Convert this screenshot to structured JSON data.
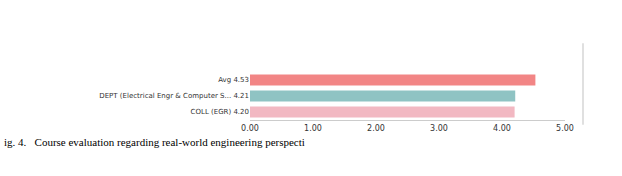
{
  "chart_data": {
    "type": "bar",
    "orientation": "horizontal",
    "caption": "ig. 4.   Course evaluation regarding real-world engineering perspecti",
    "categories": [
      "Avg 4.53",
      "DEPT (Electrical Engr & Computer S... 4.21",
      "COLL (EGR) 4.20"
    ],
    "values": [
      4.53,
      4.21,
      4.2
    ],
    "colors": [
      "#f28585",
      "#8fc3c3",
      "#f2b8c2"
    ],
    "xlim": [
      0,
      5
    ],
    "xticks": [
      {
        "value": 0,
        "label": "0.00"
      },
      {
        "value": 1,
        "label": "1.00"
      },
      {
        "value": 2,
        "label": "2.00"
      },
      {
        "value": 3,
        "label": "3.00"
      },
      {
        "value": 4,
        "label": "4.00"
      },
      {
        "value": 5,
        "label": "5.00"
      }
    ],
    "grid": false
  }
}
